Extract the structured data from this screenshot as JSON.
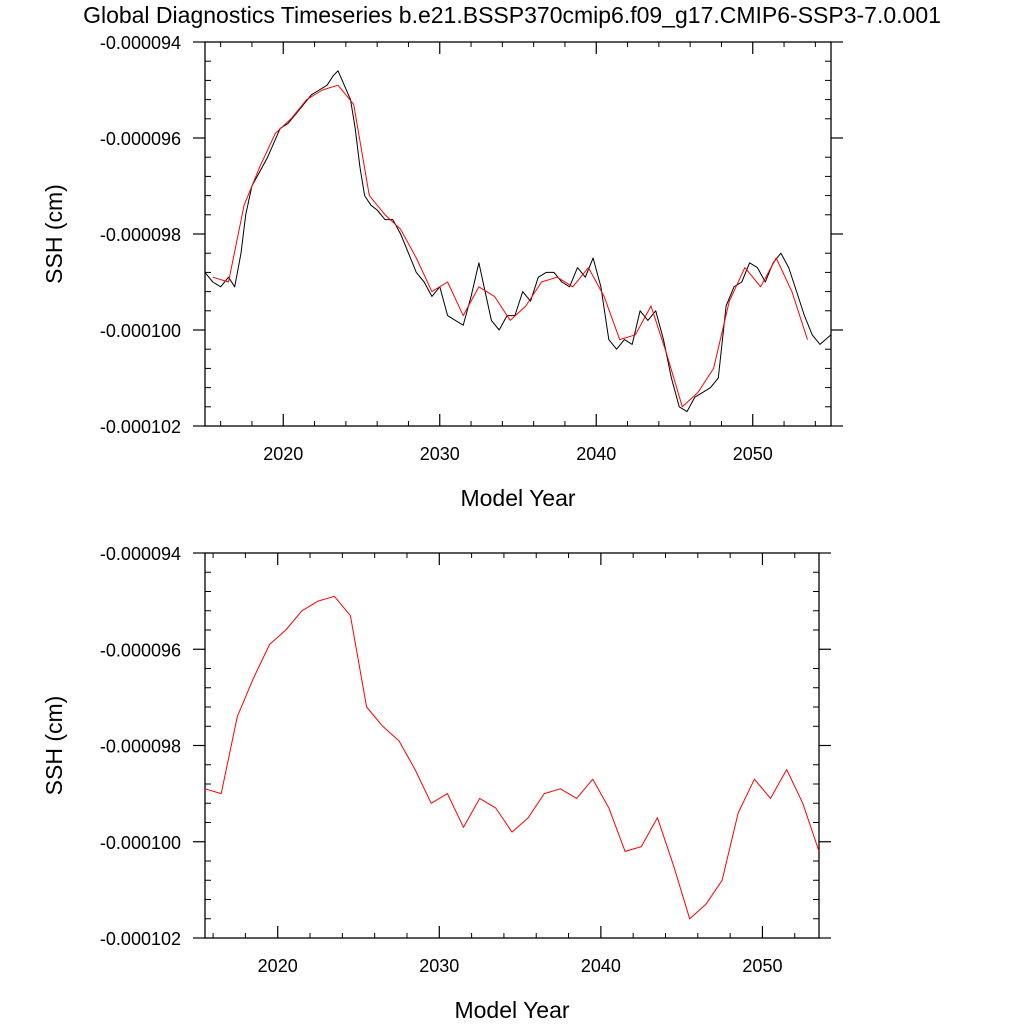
{
  "title": "Global Diagnostics Timeseries b.e21.BSSP370cmip6.f09_g17.CMIP6-SSP3-7.0.001",
  "colors": {
    "monthly_line": "#000000",
    "annual_line": "#ff0000",
    "axis": "#000000"
  },
  "chart_data": [
    {
      "type": "line",
      "xlabel": "Model Year",
      "ylabel": "SSH (cm)",
      "xlim": [
        2015,
        2055
      ],
      "ylim": [
        -0.000102,
        -9.4e-05
      ],
      "xticks": [
        2020,
        2030,
        2040,
        2050
      ],
      "xtick_labels": [
        "2020",
        "2030",
        "2040",
        "2050"
      ],
      "yticks": [
        -9.4e-05,
        -9.6e-05,
        -9.8e-05,
        -0.0001,
        -0.000102
      ],
      "ytick_labels": [
        "-0.000094",
        "-0.000096",
        "-0.000098",
        "-0.000100",
        "-0.000102"
      ],
      "grid": false,
      "legend": "none",
      "series": [
        {
          "color": "#000000",
          "style": "monthly, thin black line",
          "x": [
            2015.0,
            2015.5,
            2016.0,
            2016.5,
            2016.9,
            2017.3,
            2017.6,
            2018.0,
            2018.5,
            2019.0,
            2019.4,
            2019.8,
            2020.3,
            2020.8,
            2021.3,
            2021.8,
            2022.3,
            2022.8,
            2023.2,
            2023.5,
            2023.9,
            2024.3,
            2024.6,
            2024.9,
            2025.2,
            2025.6,
            2026.0,
            2026.5,
            2027.0,
            2027.5,
            2028.0,
            2028.5,
            2029.0,
            2029.5,
            2030.0,
            2030.5,
            2031.0,
            2031.5,
            2032.0,
            2032.5,
            2032.9,
            2033.3,
            2033.8,
            2034.3,
            2034.8,
            2035.3,
            2035.8,
            2036.3,
            2036.8,
            2037.3,
            2037.8,
            2038.3,
            2038.8,
            2039.3,
            2039.8,
            2040.3,
            2040.8,
            2041.3,
            2041.8,
            2042.3,
            2042.8,
            2043.3,
            2043.8,
            2044.3,
            2044.8,
            2045.3,
            2045.8,
            2046.3,
            2046.8,
            2047.3,
            2047.8,
            2048.3,
            2048.8,
            2049.3,
            2049.8,
            2050.3,
            2050.8,
            2051.3,
            2051.8,
            2052.3,
            2052.8,
            2053.3,
            2053.8,
            2054.3,
            2055.0
          ],
          "y": [
            -9.88e-05,
            -9.9e-05,
            -9.91e-05,
            -9.89e-05,
            -9.91e-05,
            -9.84e-05,
            -9.76e-05,
            -9.7e-05,
            -9.67e-05,
            -9.64e-05,
            -9.61e-05,
            -9.58e-05,
            -9.57e-05,
            -9.55e-05,
            -9.53e-05,
            -9.51e-05,
            -9.5e-05,
            -9.49e-05,
            -9.47e-05,
            -9.46e-05,
            -9.49e-05,
            -9.52e-05,
            -9.58e-05,
            -9.66e-05,
            -9.72e-05,
            -9.74e-05,
            -9.75e-05,
            -9.77e-05,
            -9.77e-05,
            -9.8e-05,
            -9.84e-05,
            -9.88e-05,
            -9.9e-05,
            -9.93e-05,
            -9.91e-05,
            -9.97e-05,
            -9.98e-05,
            -9.99e-05,
            -9.93e-05,
            -9.86e-05,
            -9.92e-05,
            -9.98e-05,
            -0.0001,
            -9.97e-05,
            -9.97e-05,
            -9.92e-05,
            -9.94e-05,
            -9.89e-05,
            -9.88e-05,
            -9.88e-05,
            -9.9e-05,
            -9.91e-05,
            -9.87e-05,
            -9.89e-05,
            -9.85e-05,
            -9.91e-05,
            -0.0001002,
            -0.0001004,
            -0.0001002,
            -0.0001003,
            -9.96e-05,
            -9.98e-05,
            -9.96e-05,
            -0.0001002,
            -0.000101,
            -0.0001016,
            -0.0001017,
            -0.0001014,
            -0.0001013,
            -0.0001012,
            -0.000101,
            -9.95e-05,
            -9.91e-05,
            -9.9e-05,
            -9.86e-05,
            -9.87e-05,
            -9.9e-05,
            -9.86e-05,
            -9.84e-05,
            -9.87e-05,
            -9.92e-05,
            -9.97e-05,
            -0.0001001,
            -0.0001003,
            -0.0001001
          ]
        },
        {
          "color": "#ff0000",
          "style": "annual mean, thin red line",
          "x": [
            2015.5,
            2016.5,
            2017.5,
            2018.5,
            2019.5,
            2020.5,
            2021.5,
            2022.5,
            2023.5,
            2024.5,
            2025.5,
            2026.5,
            2027.5,
            2028.5,
            2029.5,
            2030.5,
            2031.5,
            2032.5,
            2033.5,
            2034.5,
            2035.5,
            2036.5,
            2037.5,
            2038.5,
            2039.5,
            2040.5,
            2041.5,
            2042.5,
            2043.5,
            2044.5,
            2045.5,
            2046.5,
            2047.5,
            2048.5,
            2049.5,
            2050.5,
            2051.5,
            2052.5,
            2053.5
          ],
          "y": [
            -9.89e-05,
            -9.9e-05,
            -9.74e-05,
            -9.66e-05,
            -9.59e-05,
            -9.56e-05,
            -9.52e-05,
            -9.5e-05,
            -9.49e-05,
            -9.53e-05,
            -9.72e-05,
            -9.76e-05,
            -9.79e-05,
            -9.85e-05,
            -9.92e-05,
            -9.9e-05,
            -9.97e-05,
            -9.91e-05,
            -9.93e-05,
            -9.98e-05,
            -9.95e-05,
            -9.9e-05,
            -9.89e-05,
            -9.91e-05,
            -9.87e-05,
            -9.93e-05,
            -0.0001002,
            -0.0001001,
            -9.95e-05,
            -0.0001005,
            -0.0001016,
            -0.0001013,
            -0.0001008,
            -9.94e-05,
            -9.87e-05,
            -9.91e-05,
            -9.85e-05,
            -9.92e-05,
            -0.0001002
          ]
        }
      ]
    },
    {
      "type": "line",
      "xlabel": "Model Year",
      "ylabel": "SSH (cm)",
      "xlim": [
        2015.5,
        2053.5
      ],
      "ylim": [
        -0.000102,
        -9.4e-05
      ],
      "xticks": [
        2020,
        2030,
        2040,
        2050
      ],
      "xtick_labels": [
        "2020",
        "2030",
        "2040",
        "2050"
      ],
      "yticks": [
        -9.4e-05,
        -9.6e-05,
        -9.8e-05,
        -0.0001,
        -0.000102
      ],
      "ytick_labels": [
        "-0.000094",
        "-0.000096",
        "-0.000098",
        "-0.000100",
        "-0.000102"
      ],
      "grid": false,
      "legend": "none",
      "series": [
        {
          "color": "#ff0000",
          "style": "annual mean, thin red line",
          "x": [
            2015.5,
            2016.5,
            2017.5,
            2018.5,
            2019.5,
            2020.5,
            2021.5,
            2022.5,
            2023.5,
            2024.5,
            2025.5,
            2026.5,
            2027.5,
            2028.5,
            2029.5,
            2030.5,
            2031.5,
            2032.5,
            2033.5,
            2034.5,
            2035.5,
            2036.5,
            2037.5,
            2038.5,
            2039.5,
            2040.5,
            2041.5,
            2042.5,
            2043.5,
            2044.5,
            2045.5,
            2046.5,
            2047.5,
            2048.5,
            2049.5,
            2050.5,
            2051.5,
            2052.5,
            2053.5
          ],
          "y": [
            -9.89e-05,
            -9.9e-05,
            -9.74e-05,
            -9.66e-05,
            -9.59e-05,
            -9.56e-05,
            -9.52e-05,
            -9.5e-05,
            -9.49e-05,
            -9.53e-05,
            -9.72e-05,
            -9.76e-05,
            -9.79e-05,
            -9.85e-05,
            -9.92e-05,
            -9.9e-05,
            -9.97e-05,
            -9.91e-05,
            -9.93e-05,
            -9.98e-05,
            -9.95e-05,
            -9.9e-05,
            -9.89e-05,
            -9.91e-05,
            -9.87e-05,
            -9.93e-05,
            -0.0001002,
            -0.0001001,
            -9.95e-05,
            -0.0001005,
            -0.0001016,
            -0.0001013,
            -0.0001008,
            -9.94e-05,
            -9.87e-05,
            -9.91e-05,
            -9.85e-05,
            -9.92e-05,
            -0.0001002
          ]
        }
      ]
    }
  ]
}
